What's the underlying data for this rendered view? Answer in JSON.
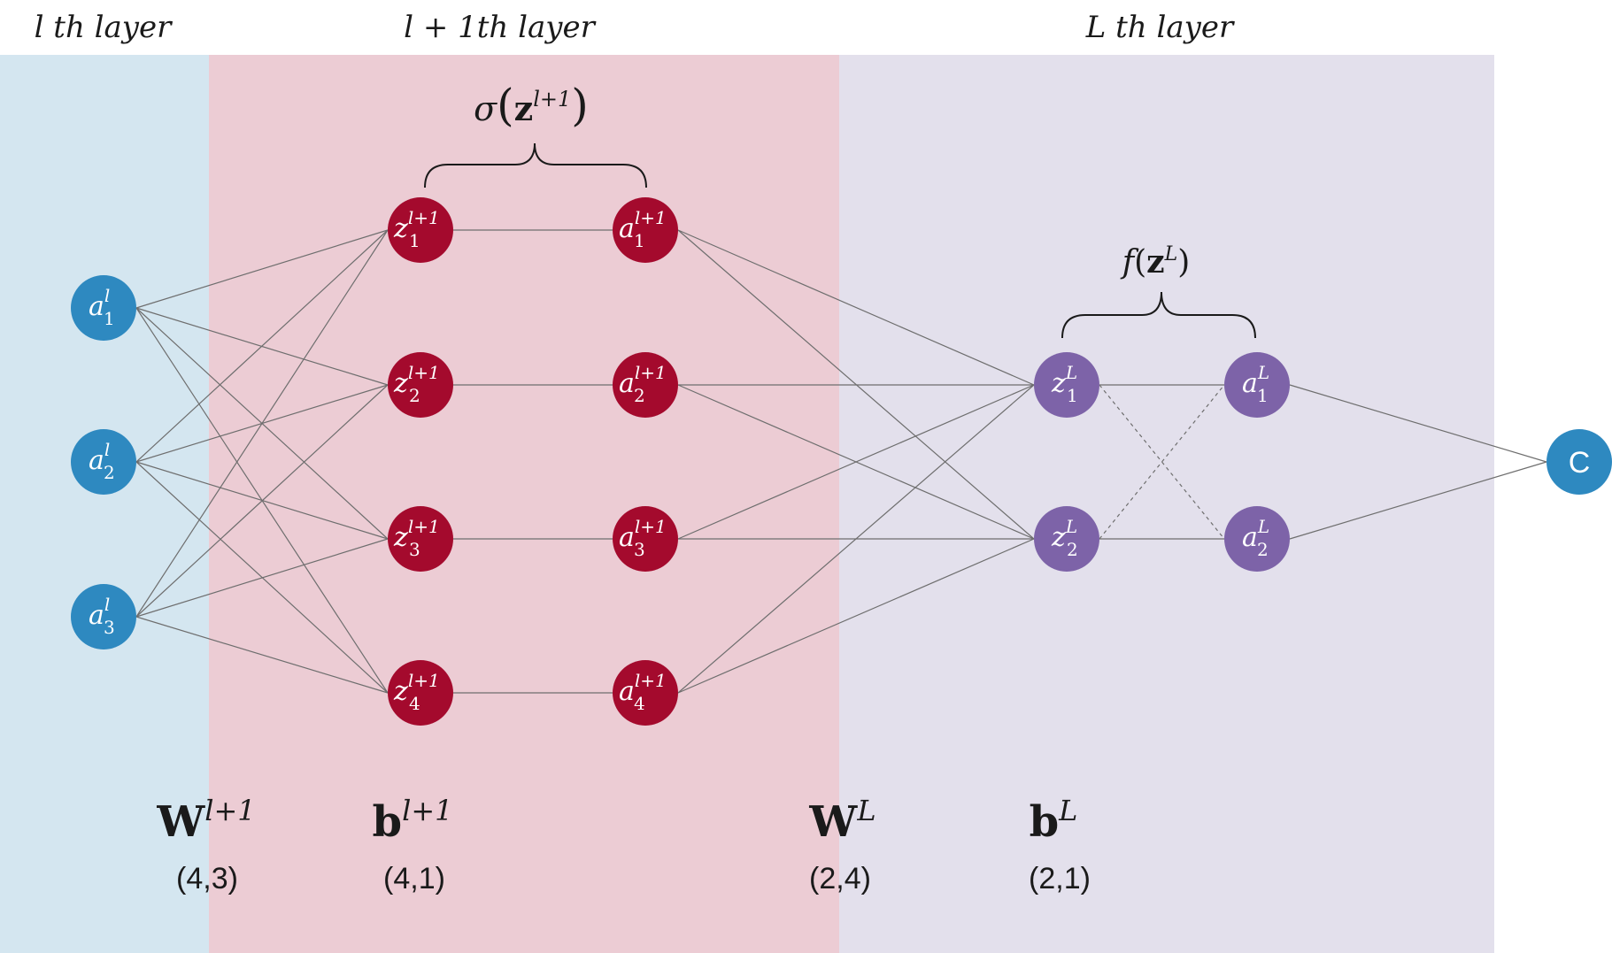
{
  "colors": {
    "l_bg": "#d4e6f0",
    "l1_bg": "#ecccd4",
    "L_bg": "#e3e0ec",
    "blue_node": "#2e89c0",
    "red_node": "#a40a2d",
    "purple_node": "#7d63a8",
    "edge": "#6e6e6e",
    "text": "#1a1a1a"
  },
  "layer_titles": {
    "l": "l th layer",
    "l1": "l + 1th layer",
    "L": "L th layer"
  },
  "braces": {
    "sigma": {
      "fn": "σ",
      "arg": "z",
      "sup": "l+1"
    },
    "f": {
      "fn": "f",
      "arg": "z",
      "sup": "L"
    }
  },
  "nodes": {
    "a_l": [
      {
        "base": "a",
        "sub": "1",
        "sup": "l"
      },
      {
        "base": "a",
        "sub": "2",
        "sup": "l"
      },
      {
        "base": "a",
        "sub": "3",
        "sup": "l"
      }
    ],
    "z_l1": [
      {
        "base": "z",
        "sub": "1",
        "sup": "l+1"
      },
      {
        "base": "z",
        "sub": "2",
        "sup": "l+1"
      },
      {
        "base": "z",
        "sub": "3",
        "sup": "l+1"
      },
      {
        "base": "z",
        "sub": "4",
        "sup": "l+1"
      }
    ],
    "a_l1": [
      {
        "base": "a",
        "sub": "1",
        "sup": "l+1"
      },
      {
        "base": "a",
        "sub": "2",
        "sup": "l+1"
      },
      {
        "base": "a",
        "sub": "3",
        "sup": "l+1"
      },
      {
        "base": "a",
        "sub": "4",
        "sup": "l+1"
      }
    ],
    "z_L": [
      {
        "base": "z",
        "sub": "1",
        "sup": "L"
      },
      {
        "base": "z",
        "sub": "2",
        "sup": "L"
      }
    ],
    "a_L": [
      {
        "base": "a",
        "sub": "1",
        "sup": "L"
      },
      {
        "base": "a",
        "sub": "2",
        "sup": "L"
      }
    ],
    "cost": {
      "label": "C"
    }
  },
  "params": [
    {
      "key": "W_l1",
      "base": "W",
      "sup": "l+1",
      "shape": "(4,3)"
    },
    {
      "key": "b_l1",
      "base": "b",
      "sup": "l+1",
      "shape": "(4,1)"
    },
    {
      "key": "W_L",
      "base": "W",
      "sup": "L",
      "shape": "(2,4)"
    },
    {
      "key": "b_L",
      "base": "b",
      "sup": "L",
      "shape": "(2,1)"
    }
  ]
}
